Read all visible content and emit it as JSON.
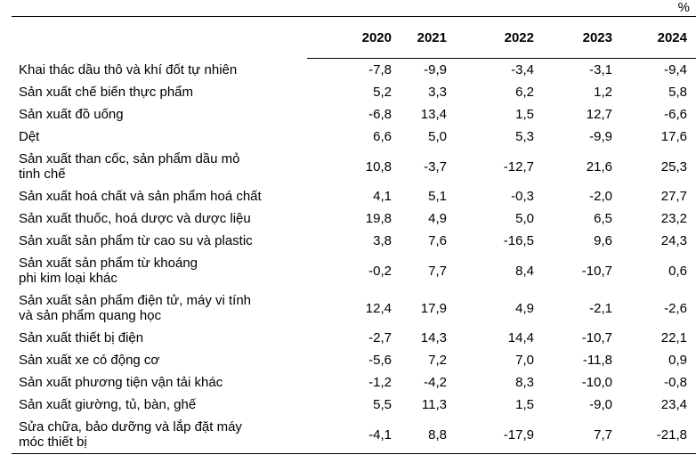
{
  "unit_label": "%",
  "table": {
    "year_headers": [
      "2020",
      "2021",
      "2022",
      "2023",
      "2024"
    ],
    "rows": [
      {
        "label": "Khai thác dầu thô và khí đốt tự nhiên",
        "values": [
          "-7,8",
          "-9,9",
          "-3,4",
          "-3,1",
          "-9,4"
        ]
      },
      {
        "label": "Sản xuất chế biến thực phẩm",
        "values": [
          "5,2",
          "3,3",
          "6,2",
          "1,2",
          "5,8"
        ]
      },
      {
        "label": "Sản xuất đồ uống",
        "values": [
          "-6,8",
          "13,4",
          "1,5",
          "12,7",
          "-6,6"
        ]
      },
      {
        "label": "Dệt",
        "values": [
          "6,6",
          "5,0",
          "5,3",
          "-9,9",
          "17,6"
        ]
      },
      {
        "label": "Sản xuất than cốc, sản phẩm dầu mỏ\ntinh chế",
        "values": [
          "10,8",
          "-3,7",
          "-12,7",
          "21,6",
          "25,3"
        ]
      },
      {
        "label": "Sản xuất hoá chất và sản phẩm hoá chất",
        "values": [
          "4,1",
          "5,1",
          "-0,3",
          "-2,0",
          "27,7"
        ]
      },
      {
        "label": "Sản xuất thuốc, hoá dược và dược liệu",
        "values": [
          "19,8",
          "4,9",
          "5,0",
          "6,5",
          "23,2"
        ]
      },
      {
        "label": "Sản xuất sản phẩm từ cao su và plastic",
        "values": [
          "3,8",
          "7,6",
          "-16,5",
          "9,6",
          "24,3"
        ]
      },
      {
        "label": "Sản xuất sản phẩm từ khoáng\nphi kim loại khác",
        "values": [
          "-0,2",
          "7,7",
          "8,4",
          "-10,7",
          "0,6"
        ]
      },
      {
        "label": "Sản xuất sản phẩm điện tử, máy vi tính\nvà sản phẩm quang học",
        "values": [
          "12,4",
          "17,9",
          "4,9",
          "-2,1",
          "-2,6"
        ]
      },
      {
        "label": "Sản xuất thiết bị điện",
        "values": [
          "-2,7",
          "14,3",
          "14,4",
          "-10,7",
          "22,1"
        ]
      },
      {
        "label": "Sản xuất xe có động cơ",
        "values": [
          "-5,6",
          "7,2",
          "7,0",
          "-11,8",
          "0,9"
        ]
      },
      {
        "label": "Sản xuất phương tiện vận tải khác",
        "values": [
          "-1,2",
          "-4,2",
          "8,3",
          "-10,0",
          "-0,8"
        ]
      },
      {
        "label": "Sản xuất giường, tủ, bàn, ghế",
        "values": [
          "5,5",
          "11,3",
          "1,5",
          "-9,0",
          "23,4"
        ]
      },
      {
        "label": "Sửa chữa, bảo dưỡng và lắp đặt máy\nmóc thiết bị",
        "values": [
          "-4,1",
          "8,8",
          "-17,9",
          "7,7",
          "-21,8"
        ]
      }
    ]
  },
  "chart_data": {
    "type": "table",
    "title": "",
    "unit": "%",
    "categories": [
      "2020",
      "2021",
      "2022",
      "2023",
      "2024"
    ],
    "series": [
      {
        "name": "Khai thác dầu thô và khí đốt tự nhiên",
        "values": [
          -7.8,
          -9.9,
          -3.4,
          -3.1,
          -9.4
        ]
      },
      {
        "name": "Sản xuất chế biến thực phẩm",
        "values": [
          5.2,
          3.3,
          6.2,
          1.2,
          5.8
        ]
      },
      {
        "name": "Sản xuất đồ uống",
        "values": [
          -6.8,
          13.4,
          1.5,
          12.7,
          -6.6
        ]
      },
      {
        "name": "Dệt",
        "values": [
          6.6,
          5.0,
          5.3,
          -9.9,
          17.6
        ]
      },
      {
        "name": "Sản xuất than cốc, sản phẩm dầu mỏ tinh chế",
        "values": [
          10.8,
          -3.7,
          -12.7,
          21.6,
          25.3
        ]
      },
      {
        "name": "Sản xuất hoá chất và sản phẩm hoá chất",
        "values": [
          4.1,
          5.1,
          -0.3,
          -2.0,
          27.7
        ]
      },
      {
        "name": "Sản xuất thuốc, hoá dược và dược liệu",
        "values": [
          19.8,
          4.9,
          5.0,
          6.5,
          23.2
        ]
      },
      {
        "name": "Sản xuất sản phẩm từ cao su và plastic",
        "values": [
          3.8,
          7.6,
          -16.5,
          9.6,
          24.3
        ]
      },
      {
        "name": "Sản xuất sản phẩm từ khoáng phi kim loại khác",
        "values": [
          -0.2,
          7.7,
          8.4,
          -10.7,
          0.6
        ]
      },
      {
        "name": "Sản xuất sản phẩm điện tử, máy vi tính và sản phẩm quang học",
        "values": [
          12.4,
          17.9,
          4.9,
          -2.1,
          -2.6
        ]
      },
      {
        "name": "Sản xuất thiết bị điện",
        "values": [
          -2.7,
          14.3,
          14.4,
          -10.7,
          22.1
        ]
      },
      {
        "name": "Sản xuất xe có động cơ",
        "values": [
          -5.6,
          7.2,
          7.0,
          -11.8,
          0.9
        ]
      },
      {
        "name": "Sản xuất phương tiện vận tải khác",
        "values": [
          -1.2,
          -4.2,
          8.3,
          -10.0,
          -0.8
        ]
      },
      {
        "name": "Sản xuất giường, tủ, bàn, ghế",
        "values": [
          5.5,
          11.3,
          1.5,
          -9.0,
          23.4
        ]
      },
      {
        "name": "Sửa chữa, bảo dưỡng và lắp đặt máy móc thiết bị",
        "values": [
          -4.1,
          8.8,
          -17.9,
          7.7,
          -21.8
        ]
      }
    ],
    "colors": {
      "text": "#000000",
      "background": "#ffffff",
      "rule": "#000000"
    }
  }
}
